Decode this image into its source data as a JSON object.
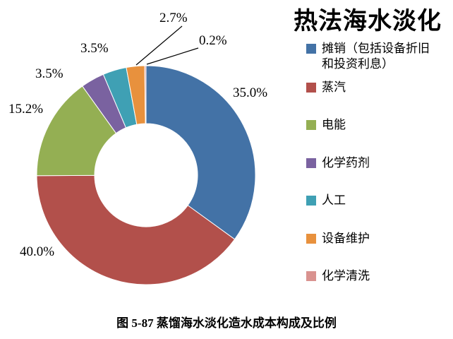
{
  "chart_data": {
    "type": "pie",
    "subtype": "donut",
    "title": "热法海水淡化",
    "caption": "图 5-87 蒸馏海水淡化造水成本构成及比例",
    "legend_position": "right",
    "start_angle_deg": 0,
    "direction": "clockwise",
    "background_color": "#ffffff",
    "slices": [
      {
        "label": "摊销（包括设备折旧和投资利息）",
        "value": 35.0,
        "display": "35.0%",
        "color": "#4372A6"
      },
      {
        "label": "蒸汽",
        "value": 40.0,
        "display": "40.0%",
        "color": "#B2504B"
      },
      {
        "label": "电能",
        "value": 15.2,
        "display": "15.2%",
        "color": "#94AF53"
      },
      {
        "label": "化学药剂",
        "value": 3.5,
        "display": "3.5%",
        "color": "#7A62A0"
      },
      {
        "label": "人工",
        "value": 3.5,
        "display": "3.5%",
        "color": "#3FA0B4"
      },
      {
        "label": "设备维护",
        "value": 2.7,
        "display": "2.7%",
        "color": "#E8913D"
      },
      {
        "label": "化学清洗",
        "value": 0.2,
        "display": "0.2%",
        "color": "#D9928F"
      }
    ]
  }
}
